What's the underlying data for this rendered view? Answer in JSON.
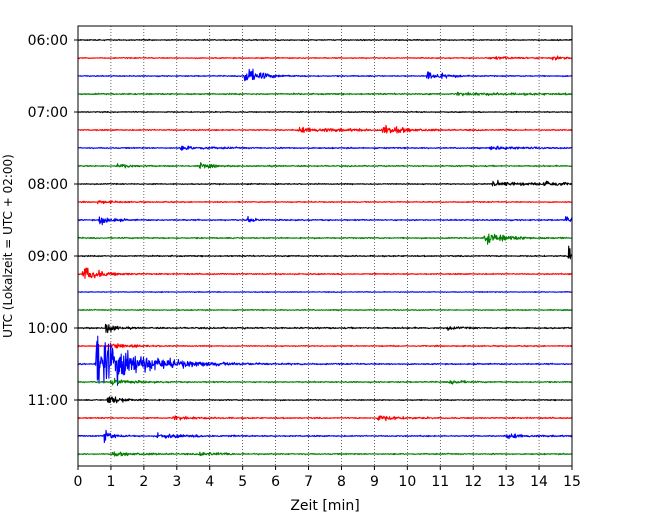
{
  "chart_data": {
    "type": "line",
    "title": "",
    "xlabel": "Zeit  [min]",
    "ylabel": "UTC (Lokalzeit = UTC + 02:00)",
    "xlim": [
      0,
      15
    ],
    "x_ticks": [
      0,
      1,
      2,
      3,
      4,
      5,
      6,
      7,
      8,
      9,
      10,
      11,
      12,
      13,
      14,
      15
    ],
    "x_tick_labels": [
      "0",
      "1",
      "2",
      "3",
      "4",
      "5",
      "6",
      "7",
      "8",
      "9",
      "10",
      "11",
      "12",
      "13",
      "14",
      "15"
    ],
    "y_tick_labels": [
      "06:00",
      "07:00",
      "08:00",
      "09:00",
      "10:00",
      "11:00"
    ],
    "y_tick_rows": [
      0,
      4,
      8,
      12,
      16,
      20
    ],
    "grid": "vertical dotted",
    "trace_minutes": 15,
    "colors": [
      "#000000",
      "#ff0000",
      "#0000ff",
      "#008000"
    ],
    "series": [
      {
        "start": "06:00",
        "color": "#000000",
        "noise": 0.25,
        "events": []
      },
      {
        "start": "06:15",
        "color": "#ff0000",
        "noise": 0.25,
        "events": [
          {
            "x": 12.5,
            "amp": 0.6,
            "w": 1.2
          },
          {
            "x": 14.4,
            "amp": 0.9,
            "w": 0.7
          }
        ]
      },
      {
        "start": "06:30",
        "color": "#0000ff",
        "noise": 0.25,
        "events": [
          {
            "x": 5.05,
            "amp": 5.0,
            "w": 0.45
          },
          {
            "x": 10.6,
            "amp": 3.0,
            "w": 0.45
          }
        ]
      },
      {
        "start": "06:45",
        "color": "#008000",
        "noise": 0.35,
        "events": [
          {
            "x": 11.5,
            "amp": 0.6,
            "w": 2.0
          }
        ]
      },
      {
        "start": "07:00",
        "color": "#000000",
        "noise": 0.25,
        "events": []
      },
      {
        "start": "07:15",
        "color": "#ff0000",
        "noise": 0.3,
        "events": [
          {
            "x": 6.7,
            "amp": 1.2,
            "w": 1.5
          },
          {
            "x": 9.25,
            "amp": 3.0,
            "w": 0.5
          }
        ]
      },
      {
        "start": "07:30",
        "color": "#0000ff",
        "noise": 0.3,
        "events": [
          {
            "x": 3.1,
            "amp": 1.0,
            "w": 0.8
          },
          {
            "x": 12.5,
            "amp": 1.0,
            "w": 0.8
          }
        ]
      },
      {
        "start": "07:45",
        "color": "#008000",
        "noise": 0.3,
        "events": [
          {
            "x": 1.2,
            "amp": 1.5,
            "w": 0.3
          },
          {
            "x": 3.7,
            "amp": 1.8,
            "w": 0.3
          }
        ]
      },
      {
        "start": "08:00",
        "color": "#000000",
        "noise": 0.25,
        "events": [
          {
            "x": 12.6,
            "amp": 1.5,
            "w": 0.9
          },
          {
            "x": 14.15,
            "amp": 2.0,
            "w": 0.4
          }
        ]
      },
      {
        "start": "08:15",
        "color": "#ff0000",
        "noise": 0.25,
        "events": [
          {
            "x": 0.6,
            "amp": 0.8,
            "w": 0.5
          }
        ]
      },
      {
        "start": "08:30",
        "color": "#0000ff",
        "noise": 0.3,
        "events": [
          {
            "x": 0.65,
            "amp": 3.0,
            "w": 0.3
          },
          {
            "x": 5.15,
            "amp": 2.0,
            "w": 0.2
          },
          {
            "x": 14.8,
            "amp": 2.0,
            "w": 0.4
          }
        ]
      },
      {
        "start": "08:45",
        "color": "#008000",
        "noise": 0.3,
        "events": [
          {
            "x": 12.35,
            "amp": 3.5,
            "w": 0.6
          }
        ]
      },
      {
        "start": "09:00",
        "color": "#000000",
        "noise": 0.3,
        "events": [
          {
            "x": 14.9,
            "amp": 4.5,
            "w": 0.35
          }
        ]
      },
      {
        "start": "09:15",
        "color": "#ff0000",
        "noise": 0.3,
        "events": [
          {
            "x": 0.15,
            "amp": 4.0,
            "w": 0.5
          }
        ]
      },
      {
        "start": "09:30",
        "color": "#0000ff",
        "noise": 0.2,
        "events": []
      },
      {
        "start": "09:45",
        "color": "#008000",
        "noise": 0.25,
        "events": []
      },
      {
        "start": "10:00",
        "color": "#000000",
        "noise": 0.35,
        "events": [
          {
            "x": 0.85,
            "amp": 4.0,
            "w": 0.2
          },
          {
            "x": 11.2,
            "amp": 1.0,
            "w": 0.3
          }
        ]
      },
      {
        "start": "10:15",
        "color": "#ff0000",
        "noise": 0.25,
        "events": [
          {
            "x": 1.0,
            "amp": 1.5,
            "w": 0.6
          }
        ]
      },
      {
        "start": "10:30",
        "color": "#0000ff",
        "noise": 0.3,
        "events": [
          {
            "x": 0.55,
            "amp": 16.0,
            "w": 1.2
          }
        ]
      },
      {
        "start": "10:45",
        "color": "#008000",
        "noise": 0.3,
        "events": [
          {
            "x": 1.0,
            "amp": 2.0,
            "w": 0.5
          },
          {
            "x": 11.3,
            "amp": 1.5,
            "w": 0.3
          }
        ]
      },
      {
        "start": "11:00",
        "color": "#000000",
        "noise": 0.25,
        "events": [
          {
            "x": 0.9,
            "amp": 3.0,
            "w": 0.4
          }
        ]
      },
      {
        "start": "11:15",
        "color": "#ff0000",
        "noise": 0.3,
        "events": [
          {
            "x": 2.9,
            "amp": 1.0,
            "w": 0.6
          },
          {
            "x": 9.1,
            "amp": 1.5,
            "w": 0.6
          }
        ]
      },
      {
        "start": "11:30",
        "color": "#0000ff",
        "noise": 0.3,
        "events": [
          {
            "x": 0.8,
            "amp": 4.0,
            "w": 0.2
          },
          {
            "x": 2.4,
            "amp": 1.2,
            "w": 1.0
          },
          {
            "x": 13.0,
            "amp": 1.2,
            "w": 0.6
          }
        ]
      },
      {
        "start": "11:45",
        "color": "#008000",
        "noise": 0.3,
        "events": [
          {
            "x": 1.0,
            "amp": 1.0,
            "w": 0.8
          },
          {
            "x": 3.7,
            "amp": 1.0,
            "w": 0.6
          }
        ]
      }
    ]
  }
}
